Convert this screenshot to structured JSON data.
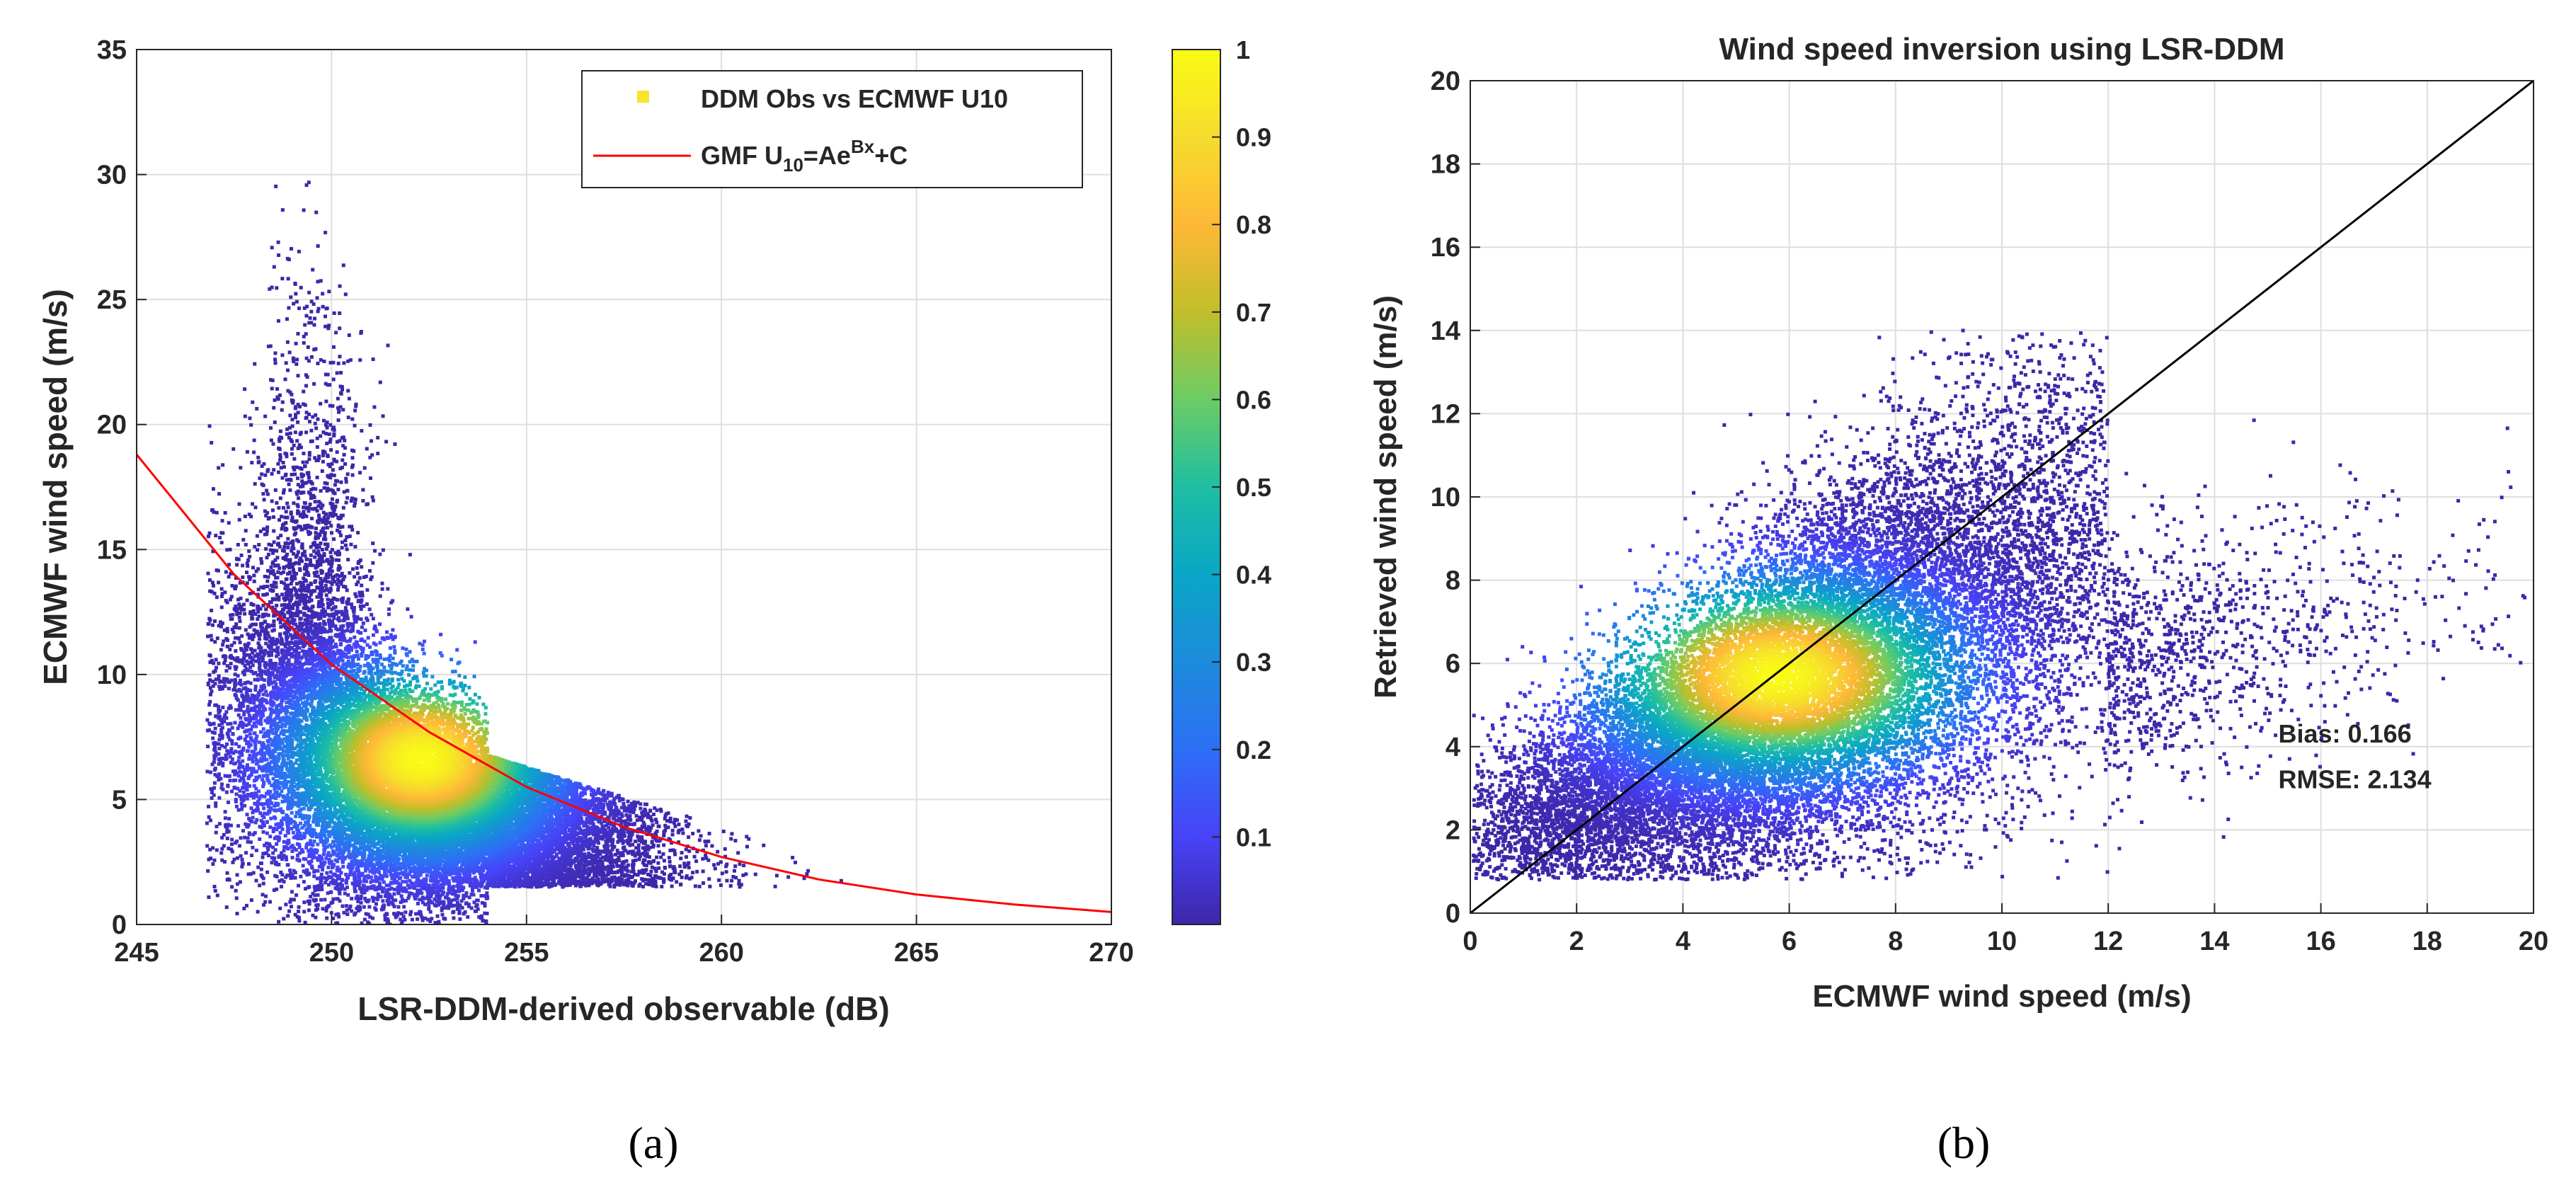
{
  "chart_data": [
    {
      "id": "a",
      "type": "scatter",
      "title": "",
      "xlabel": "LSR-DDM-derived observable (dB)",
      "ylabel": "ECMWF wind speed (m/s)",
      "xlim": [
        245,
        270
      ],
      "ylim": [
        0,
        35
      ],
      "xticks": [
        245,
        250,
        255,
        260,
        265,
        270
      ],
      "yticks": [
        0,
        5,
        10,
        15,
        20,
        25,
        30,
        35
      ],
      "grid": true,
      "legend_position": "top-right",
      "series": [
        {
          "name": "DDM Obs vs ECMWF U10",
          "kind": "density-scatter",
          "density_center": {
            "x": 252.3,
            "y": 6.6
          },
          "spread": {
            "x": 2.6,
            "y": 2.9
          },
          "samples": 22000
        },
        {
          "name": "GMF U10=Ae^(Bx)+C",
          "kind": "fit-curve",
          "color": "#ff0000",
          "x": [
            245,
            247.5,
            250,
            252.5,
            255,
            257.5,
            260,
            262.5,
            265,
            267.5,
            270
          ],
          "y": [
            18.8,
            14.0,
            10.4,
            7.7,
            5.5,
            3.9,
            2.7,
            1.8,
            1.2,
            0.8,
            0.5
          ]
        }
      ],
      "legend": [
        {
          "label": "DDM Obs vs ECMWF U10",
          "marker": "square",
          "color": "#f9e32d"
        },
        {
          "label_main": "GMF U",
          "label_sub": "10",
          "label_mid": "=Ae",
          "label_sup": "Bx",
          "label_end": "+C",
          "marker": "line",
          "color": "#ff0000"
        }
      ],
      "colorbar": {
        "range": [
          0,
          1
        ],
        "ticks": [
          0.1,
          0.2,
          0.3,
          0.4,
          0.5,
          0.6,
          0.7,
          0.8,
          0.9,
          1
        ],
        "tick_labels": [
          "0.1",
          "0.2",
          "0.3",
          "0.4",
          "0.5",
          "0.6",
          "0.7",
          "0.8",
          "0.9",
          "1"
        ],
        "colormap": [
          "#3e26a8",
          "#4743f8",
          "#2d6ff6",
          "#1c8bdb",
          "#0aa6c6",
          "#1fbea2",
          "#6ccc65",
          "#c1be2a",
          "#feb837",
          "#f6dc2c",
          "#f9fb15"
        ]
      },
      "caption": "(a)"
    },
    {
      "id": "b",
      "type": "scatter",
      "title": "Wind speed inversion using LSR-DDM",
      "xlabel": "ECMWF wind speed (m/s)",
      "ylabel": "Retrieved wind speed (m/s)",
      "xlim": [
        0,
        20
      ],
      "ylim": [
        0,
        20
      ],
      "xticks": [
        0,
        2,
        4,
        6,
        8,
        10,
        12,
        14,
        16,
        18,
        20
      ],
      "yticks": [
        0,
        2,
        4,
        6,
        8,
        10,
        12,
        14,
        16,
        18,
        20
      ],
      "grid": true,
      "series": [
        {
          "name": "retrieved vs ECMWF",
          "kind": "density-scatter",
          "density_center": {
            "x": 5.8,
            "y": 5.7
          },
          "spread": {
            "x": 2.8,
            "y": 1.8
          },
          "samples": 22000
        },
        {
          "name": "1:1 line",
          "kind": "line",
          "color": "#000000",
          "x": [
            0,
            20
          ],
          "y": [
            0,
            20
          ]
        }
      ],
      "annotations": [
        {
          "text": "Bias: 0.166",
          "x": 15.2,
          "y": 4.1
        },
        {
          "text": "RMSE: 2.134",
          "x": 15.2,
          "y": 3.0
        }
      ],
      "caption": "(b)"
    }
  ]
}
